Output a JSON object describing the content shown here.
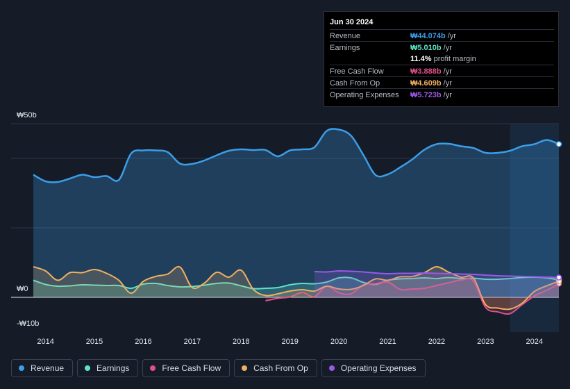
{
  "tooltip": {
    "date": "Jun 30 2024",
    "rows": [
      {
        "label": "Revenue",
        "value": "₩44.074b",
        "unit": "/yr",
        "color": "#3b9ee8"
      },
      {
        "label": "Earnings",
        "value": "₩5.010b",
        "unit": "/yr",
        "color": "#5ee3c7"
      },
      {
        "label": "",
        "value": "11.4%",
        "unit": "profit margin",
        "color": "#ffffff"
      },
      {
        "label": "Free Cash Flow",
        "value": "₩3.888b",
        "unit": "/yr",
        "color": "#e0508a"
      },
      {
        "label": "Cash From Op",
        "value": "₩4.609b",
        "unit": "/yr",
        "color": "#f0b062"
      },
      {
        "label": "Operating Expenses",
        "value": "₩5.723b",
        "unit": "/yr",
        "color": "#9b59e8"
      }
    ]
  },
  "chart_data": {
    "type": "area",
    "title": "",
    "ylabel": "",
    "y_tick_labels": [
      "₩50b",
      "₩0",
      "-₩10b"
    ],
    "ylim": [
      -10,
      50
    ],
    "xlim": [
      2013.75,
      2024.5
    ],
    "x_tick_labels": [
      "2014",
      "2015",
      "2016",
      "2017",
      "2018",
      "2019",
      "2020",
      "2021",
      "2022",
      "2023",
      "2024"
    ],
    "x_ticks": [
      2014,
      2015,
      2016,
      2017,
      2018,
      2019,
      2020,
      2021,
      2022,
      2023,
      2024
    ],
    "highlight_start": 2023.5,
    "series": [
      {
        "name": "Revenue",
        "color": "#3b9ee8",
        "x": [
          2013.75,
          2014.0,
          2014.25,
          2014.5,
          2014.75,
          2015.0,
          2015.25,
          2015.5,
          2015.75,
          2016.0,
          2016.25,
          2016.5,
          2016.75,
          2017.0,
          2017.25,
          2017.5,
          2017.75,
          2018.0,
          2018.25,
          2018.5,
          2018.75,
          2019.0,
          2019.25,
          2019.5,
          2019.75,
          2020.0,
          2020.25,
          2020.5,
          2020.75,
          2021.0,
          2021.25,
          2021.5,
          2021.75,
          2022.0,
          2022.25,
          2022.5,
          2022.75,
          2023.0,
          2023.25,
          2023.5,
          2023.75,
          2024.0,
          2024.25,
          2024.5
        ],
        "values": [
          35.3,
          33.4,
          33.2,
          34.2,
          35.3,
          34.6,
          34.9,
          33.8,
          41.4,
          42.3,
          42.3,
          41.8,
          38.5,
          38.4,
          39.4,
          40.9,
          42.2,
          42.6,
          42.4,
          42.4,
          40.6,
          42.3,
          42.6,
          43.2,
          47.9,
          48.3,
          46.5,
          41.0,
          35.2,
          35.4,
          37.4,
          39.7,
          42.5,
          44.1,
          44.2,
          43.5,
          43.0,
          41.6,
          41.6,
          42.2,
          43.5,
          44.1,
          45.3,
          44.1
        ]
      },
      {
        "name": "Earnings",
        "color": "#5ee3c7",
        "x": [
          2013.75,
          2014.0,
          2014.25,
          2014.5,
          2014.75,
          2015.0,
          2015.25,
          2015.5,
          2015.75,
          2016.0,
          2016.25,
          2016.5,
          2016.75,
          2017.0,
          2017.25,
          2017.5,
          2017.75,
          2018.0,
          2018.25,
          2018.5,
          2018.75,
          2019.0,
          2019.25,
          2019.5,
          2019.75,
          2020.0,
          2020.25,
          2020.5,
          2020.75,
          2021.0,
          2021.25,
          2021.5,
          2021.75,
          2022.0,
          2022.25,
          2022.5,
          2022.75,
          2023.0,
          2023.25,
          2023.5,
          2023.75,
          2024.0,
          2024.25,
          2024.5
        ],
        "values": [
          4.9,
          3.7,
          3.2,
          3.3,
          3.6,
          3.5,
          3.4,
          3.4,
          2.6,
          3.8,
          4.0,
          3.4,
          3.0,
          3.1,
          3.5,
          4.0,
          4.1,
          3.3,
          2.5,
          2.6,
          2.8,
          3.6,
          4.0,
          3.9,
          4.4,
          5.6,
          5.6,
          4.3,
          3.7,
          4.9,
          5.3,
          5.4,
          5.6,
          5.4,
          5.7,
          5.4,
          5.5,
          5.2,
          5.2,
          5.4,
          5.7,
          5.8,
          5.6,
          5.0
        ]
      },
      {
        "name": "Free Cash Flow",
        "color": "#e0508a",
        "x": [
          2018.5,
          2018.75,
          2019.0,
          2019.25,
          2019.5,
          2019.75,
          2020.0,
          2020.25,
          2020.5,
          2020.75,
          2021.0,
          2021.25,
          2021.5,
          2021.75,
          2022.0,
          2022.25,
          2022.5,
          2022.75,
          2023.0,
          2023.25,
          2023.5,
          2023.75,
          2024.0,
          2024.25,
          2024.5
        ],
        "values": [
          -1.0,
          -0.3,
          0.1,
          1.4,
          0.2,
          3.2,
          1.3,
          1.0,
          3.6,
          3.9,
          4.4,
          2.3,
          2.4,
          2.6,
          3.4,
          4.2,
          5.0,
          4.7,
          -2.9,
          -4.2,
          -4.7,
          -2.1,
          0.4,
          2.0,
          3.9
        ]
      },
      {
        "name": "Cash From Op",
        "color": "#f0b062",
        "x": [
          2013.75,
          2014.0,
          2014.25,
          2014.5,
          2014.75,
          2015.0,
          2015.25,
          2015.5,
          2015.75,
          2016.0,
          2016.25,
          2016.5,
          2016.75,
          2017.0,
          2017.25,
          2017.5,
          2017.75,
          2018.0,
          2018.25,
          2018.5,
          2018.75,
          2019.0,
          2019.25,
          2019.5,
          2019.75,
          2020.0,
          2020.25,
          2020.5,
          2020.75,
          2021.0,
          2021.25,
          2021.5,
          2021.75,
          2022.0,
          2022.25,
          2022.5,
          2022.75,
          2023.0,
          2023.25,
          2023.5,
          2023.75,
          2024.0,
          2024.25,
          2024.5
        ],
        "values": [
          8.8,
          7.6,
          4.9,
          7.1,
          7.1,
          8.0,
          6.9,
          4.9,
          1.2,
          4.6,
          6.0,
          6.7,
          8.7,
          2.8,
          4.1,
          7.2,
          5.8,
          7.8,
          2.3,
          0.5,
          1.0,
          1.8,
          2.2,
          1.8,
          3.2,
          2.4,
          2.3,
          3.4,
          5.3,
          4.9,
          5.9,
          6.0,
          7.1,
          8.8,
          7.2,
          5.8,
          5.6,
          -2.1,
          -3.1,
          -3.4,
          -1.7,
          1.7,
          3.3,
          4.6
        ]
      },
      {
        "name": "Operating Expenses",
        "color": "#9b59e8",
        "x": [
          2019.5,
          2019.75,
          2020.0,
          2020.25,
          2020.5,
          2020.75,
          2021.0,
          2021.25,
          2021.5,
          2021.75,
          2022.0,
          2022.25,
          2022.5,
          2022.75,
          2023.0,
          2023.25,
          2023.5,
          2023.75,
          2024.0,
          2024.25,
          2024.5
        ],
        "values": [
          7.4,
          7.3,
          7.6,
          7.5,
          7.3,
          7.0,
          6.8,
          6.9,
          6.9,
          7.0,
          6.9,
          6.8,
          6.7,
          6.6,
          6.4,
          6.2,
          6.1,
          6.0,
          5.9,
          5.8,
          5.7
        ]
      }
    ]
  },
  "legend": [
    {
      "label": "Revenue",
      "color": "#3b9ee8"
    },
    {
      "label": "Earnings",
      "color": "#5ee3c7"
    },
    {
      "label": "Free Cash Flow",
      "color": "#e0508a"
    },
    {
      "label": "Cash From Op",
      "color": "#f0b062"
    },
    {
      "label": "Operating Expenses",
      "color": "#9b59e8"
    }
  ]
}
